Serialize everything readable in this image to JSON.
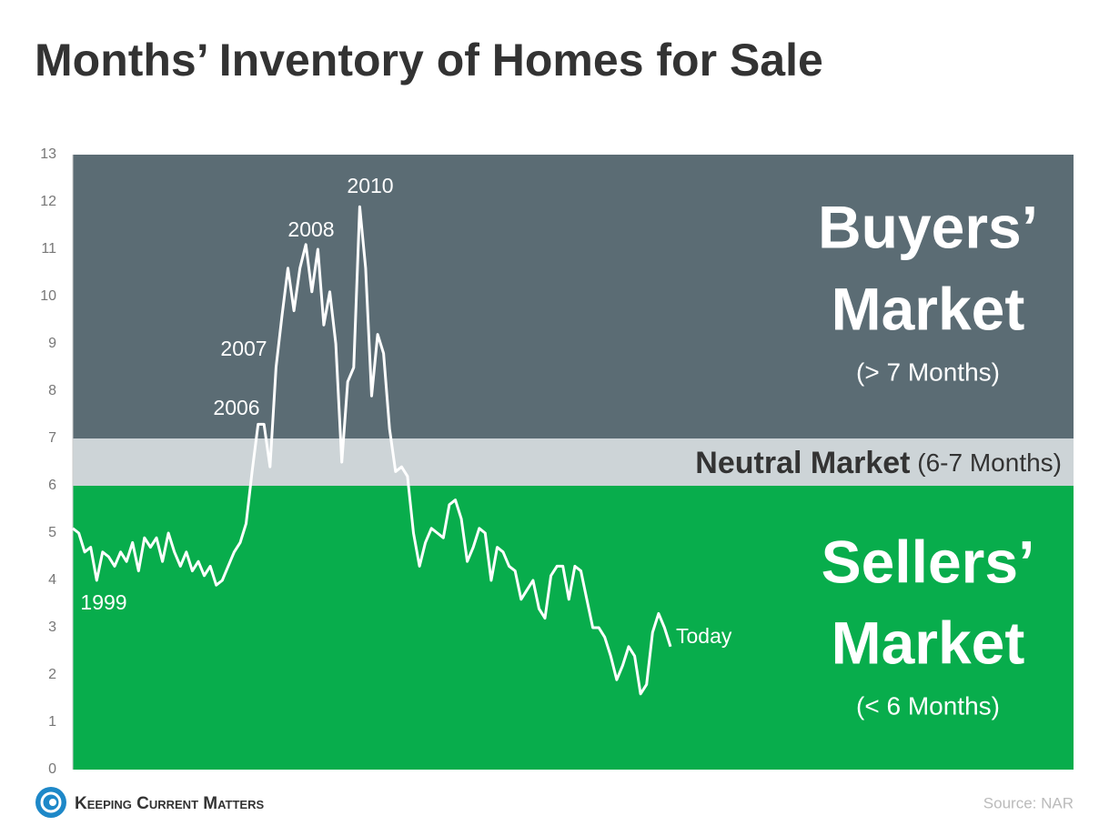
{
  "chart_data": {
    "type": "line",
    "title": "Months’ Inventory of Homes for Sale",
    "ylim": [
      0,
      13
    ],
    "yticks": [
      0,
      1,
      2,
      3,
      4,
      5,
      6,
      7,
      8,
      9,
      10,
      11,
      12,
      13
    ],
    "color": "#ffffff",
    "values": [
      5.1,
      5.0,
      4.6,
      4.7,
      4.0,
      4.6,
      4.5,
      4.3,
      4.6,
      4.4,
      4.8,
      4.2,
      4.9,
      4.7,
      4.9,
      4.4,
      5.0,
      4.6,
      4.3,
      4.6,
      4.2,
      4.4,
      4.1,
      4.3,
      3.9,
      4.0,
      4.3,
      4.6,
      4.8,
      5.2,
      6.3,
      7.3,
      7.3,
      6.4,
      8.5,
      9.6,
      10.6,
      9.7,
      10.6,
      11.1,
      10.1,
      11.0,
      9.4,
      10.1,
      9.0,
      6.5,
      8.2,
      8.5,
      11.9,
      10.6,
      7.9,
      9.2,
      8.8,
      7.2,
      6.3,
      6.4,
      6.2,
      5.0,
      4.3,
      4.8,
      5.1,
      5.0,
      4.9,
      5.6,
      5.7,
      5.3,
      4.4,
      4.7,
      5.1,
      5.0,
      4.0,
      4.7,
      4.6,
      4.3,
      4.2,
      3.6,
      3.8,
      4.0,
      3.4,
      3.2,
      4.1,
      4.3,
      4.3,
      3.6,
      4.3,
      4.2,
      3.6,
      3.0,
      3.0,
      2.8,
      2.4,
      1.9,
      2.2,
      2.6,
      2.4,
      1.6,
      1.8,
      2.9,
      3.3,
      3.0,
      2.6
    ],
    "annotations": [
      "1999",
      "2006",
      "2007",
      "2008",
      "2010",
      "Today"
    ],
    "bands": [
      {
        "label": "Buyers’",
        "label2": "Market",
        "sublabel": "(> 7 Months)",
        "from": 7,
        "to": 13,
        "color": "#5b6c74"
      },
      {
        "label": "Neutral Market",
        "sublabel": "(6-7 Months)",
        "from": 6,
        "to": 7,
        "color": "#cdd4d7"
      },
      {
        "label": "Sellers’",
        "label2": "Market",
        "sublabel": "(< 6 Months)",
        "from": 0,
        "to": 6,
        "color": "#08ad4c"
      }
    ],
    "logo": "Keeping Current Matters",
    "source": "Source: NAR"
  }
}
